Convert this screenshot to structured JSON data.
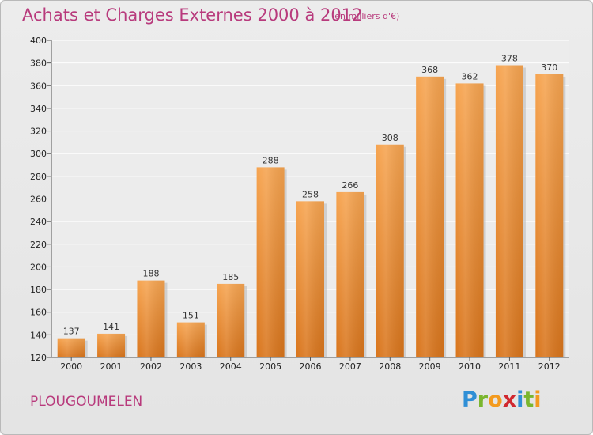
{
  "header": {
    "title": "Achats et Charges Externes 2000 à 2012",
    "subtitle": "(en milliers d'€)"
  },
  "footer": {
    "location": "PLOUGOUMELEN",
    "brand_letters": [
      {
        "char": "P",
        "color": "#2f8fd6"
      },
      {
        "char": "r",
        "color": "#7ab62e"
      },
      {
        "char": "o",
        "color": "#f39a1e"
      },
      {
        "char": "x",
        "color": "#d0282f"
      },
      {
        "char": "i",
        "color": "#2f8fd6"
      },
      {
        "char": "t",
        "color": "#7ab62e"
      },
      {
        "char": "i",
        "color": "#f39a1e"
      }
    ]
  },
  "chart_data": {
    "type": "bar",
    "title": "Achats et Charges Externes 2000 à 2012",
    "subtitle": "(en milliers d'€)",
    "categories": [
      "2000",
      "2001",
      "2002",
      "2003",
      "2004",
      "2005",
      "2006",
      "2007",
      "2008",
      "2009",
      "2010",
      "2011",
      "2012"
    ],
    "values": [
      137,
      141,
      188,
      151,
      185,
      288,
      258,
      266,
      308,
      368,
      362,
      378,
      370
    ],
    "data_labels": [
      "137",
      "141",
      "188",
      "151",
      "185",
      "288",
      "258",
      "266",
      "308",
      "368",
      "362",
      "378",
      "370"
    ],
    "ylim": [
      120,
      400
    ],
    "yticks": [
      120,
      140,
      160,
      180,
      200,
      220,
      240,
      260,
      280,
      300,
      320,
      340,
      360,
      380,
      400
    ],
    "grid": true,
    "bar_color": "#f0922e",
    "xlabel": "",
    "ylabel": ""
  }
}
